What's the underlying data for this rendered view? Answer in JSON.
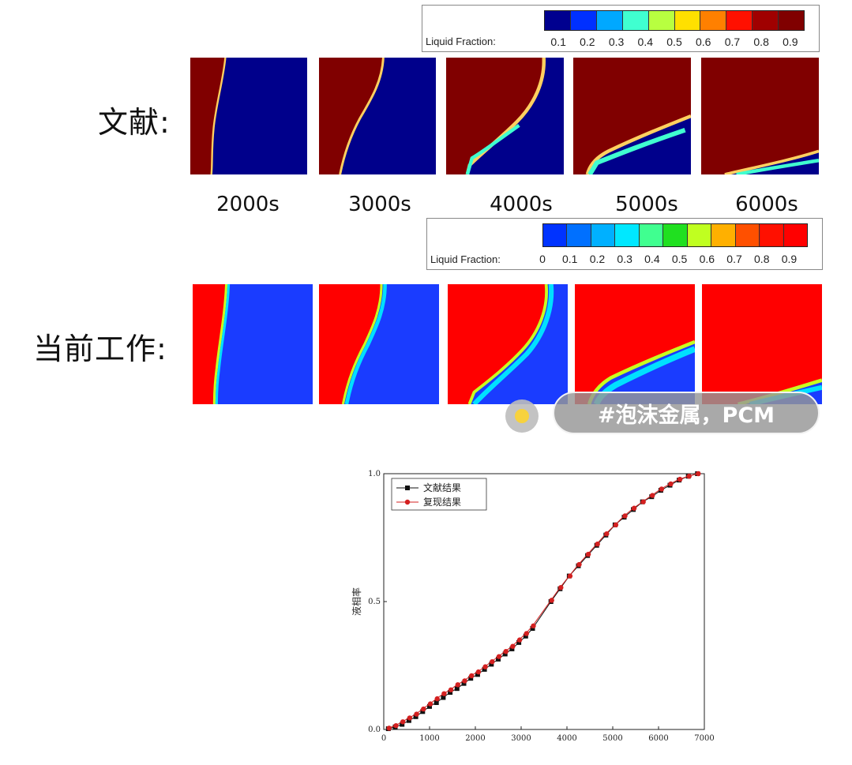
{
  "colorbar_top": {
    "title": "Liquid Fraction:",
    "ticks": [
      "0.1",
      "0.2",
      "0.3",
      "0.4",
      "0.5",
      "0.6",
      "0.7",
      "0.8",
      "0.9"
    ],
    "colors": [
      "#00008f",
      "#0030ff",
      "#00a8ff",
      "#40ffd0",
      "#b8ff40",
      "#ffe000",
      "#ff8000",
      "#ff1000",
      "#a00000",
      "#800000"
    ]
  },
  "colorbar_bottom": {
    "title": "Liquid Fraction:",
    "ticks": [
      "0",
      "0.1",
      "0.2",
      "0.3",
      "0.4",
      "0.5",
      "0.6",
      "0.7",
      "0.8",
      "0.9"
    ],
    "colors": [
      "#0033ff",
      "#0070ff",
      "#00b0ff",
      "#00e8ff",
      "#40ff90",
      "#20e020",
      "#c0ff20",
      "#ffb000",
      "#ff5000",
      "#ff1000",
      "#ff0000"
    ]
  },
  "row_labels": {
    "literature": "文献:",
    "current": "当前工作:"
  },
  "times": [
    "2000s",
    "3000s",
    "4000s",
    "5000s",
    "6000s"
  ],
  "panel_colors": {
    "top_liquid": "#800000",
    "top_solid": "#00008b",
    "bottom_liquid": "#ff0000",
    "bottom_solid": "#1a3cff"
  },
  "hashtag": "#泡沫金属，PCM",
  "chart_data": {
    "type": "scatter",
    "xlabel": "",
    "ylabel": "液相率",
    "xlim": [
      0,
      7000
    ],
    "ylim": [
      0,
      1.0
    ],
    "x_ticks": [
      "0",
      "1000",
      "2000",
      "3000",
      "4000",
      "5000",
      "6000",
      "7000"
    ],
    "y_ticks": [
      "0.0",
      "0.5",
      "1.0"
    ],
    "legend_position": "top-left",
    "series": [
      {
        "name": "文献结果",
        "color": "#111111",
        "marker": "square",
        "x": [
          100,
          250,
          400,
          550,
          700,
          850,
          1000,
          1150,
          1300,
          1450,
          1600,
          1750,
          1900,
          2050,
          2200,
          2350,
          2500,
          2650,
          2800,
          2950,
          3100,
          3250,
          3650,
          3850,
          4050,
          4250,
          4450,
          4650,
          4850,
          5050,
          5250,
          5450,
          5650,
          5850,
          6050,
          6250,
          6450,
          6650,
          6850
        ],
        "values": [
          0.003,
          0.01,
          0.02,
          0.035,
          0.05,
          0.07,
          0.09,
          0.105,
          0.125,
          0.145,
          0.16,
          0.18,
          0.2,
          0.215,
          0.235,
          0.255,
          0.275,
          0.295,
          0.315,
          0.34,
          0.365,
          0.395,
          0.5,
          0.55,
          0.6,
          0.64,
          0.68,
          0.72,
          0.76,
          0.8,
          0.83,
          0.86,
          0.89,
          0.91,
          0.935,
          0.955,
          0.975,
          0.99,
          1.0
        ]
      },
      {
        "name": "复现结果",
        "color": "#d42020",
        "marker": "circle",
        "x": [
          100,
          250,
          400,
          550,
          700,
          850,
          1000,
          1150,
          1300,
          1450,
          1600,
          1750,
          1900,
          2050,
          2200,
          2350,
          2500,
          2650,
          2800,
          2950,
          3100,
          3250,
          3650,
          3850,
          4050,
          4250,
          4450,
          4650,
          4850,
          5050,
          5250,
          5450,
          5650,
          5850,
          6050,
          6250,
          6450,
          6650,
          6850
        ],
        "values": [
          0.005,
          0.015,
          0.03,
          0.045,
          0.06,
          0.08,
          0.1,
          0.12,
          0.14,
          0.155,
          0.175,
          0.19,
          0.21,
          0.225,
          0.245,
          0.265,
          0.285,
          0.305,
          0.325,
          0.35,
          0.375,
          0.405,
          0.505,
          0.555,
          0.6,
          0.645,
          0.685,
          0.725,
          0.765,
          0.8,
          0.835,
          0.865,
          0.89,
          0.915,
          0.94,
          0.96,
          0.978,
          0.99,
          1.0
        ]
      }
    ]
  }
}
